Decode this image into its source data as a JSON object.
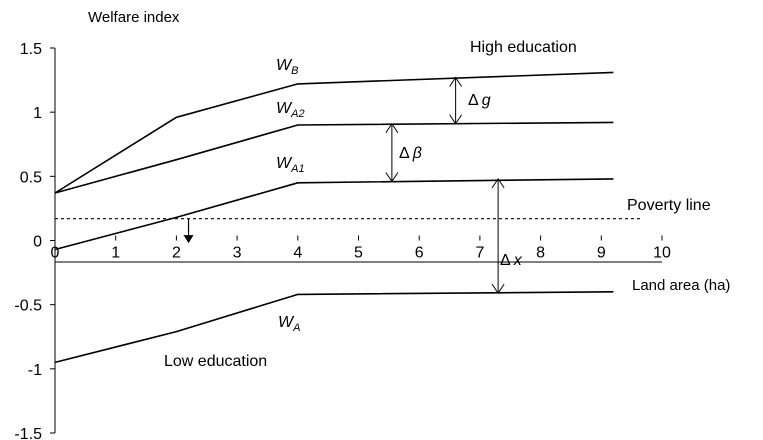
{
  "chart_data": {
    "type": "line",
    "ylabel": "Welfare index",
    "xlabel": "Land area (ha)",
    "xlim": [
      0,
      10
    ],
    "ylim": [
      -1.5,
      1.5
    ],
    "x_ticks": [
      "0",
      "1",
      "2",
      "3",
      "4",
      "5",
      "6",
      "7",
      "8",
      "9",
      "10"
    ],
    "y_ticks": [
      "1.5",
      "1",
      "0.5",
      "0",
      "-0.5",
      "-1",
      "-1.5"
    ],
    "grid": false,
    "legend": "none",
    "series": [
      {
        "name": "W_B",
        "label_main": "W",
        "label_sub": "B",
        "color": "#000000",
        "points": [
          [
            0,
            0.37
          ],
          [
            2,
            0.96
          ],
          [
            4,
            1.22
          ],
          [
            9.2,
            1.31
          ]
        ]
      },
      {
        "name": "W_A2",
        "label_main": "W",
        "label_sub": "A2",
        "color": "#000000",
        "points": [
          [
            0,
            0.37
          ],
          [
            2,
            0.63
          ],
          [
            4,
            0.9
          ],
          [
            9.2,
            0.92
          ]
        ]
      },
      {
        "name": "W_A1",
        "label_main": "W",
        "label_sub": "A1",
        "color": "#000000",
        "points": [
          [
            0,
            -0.07
          ],
          [
            2,
            0.18
          ],
          [
            4,
            0.45
          ],
          [
            9.2,
            0.48
          ]
        ]
      },
      {
        "name": "W_A",
        "label_main": "W",
        "label_sub": "A",
        "color": "#000000",
        "points": [
          [
            0,
            -0.95
          ],
          [
            2,
            -0.71
          ],
          [
            4,
            -0.42
          ],
          [
            9.2,
            -0.4
          ]
        ]
      }
    ],
    "poverty_line": {
      "label": "Poverty line",
      "y": 0.17
    },
    "annotations": {
      "high_education": "High education",
      "low_education": "Low education",
      "delta_g": {
        "symbol": "Δ",
        "var": "g",
        "x": 6.6,
        "y_top": 1.27,
        "y_bottom": 0.91
      },
      "delta_beta": {
        "symbol": "Δ",
        "var": "β",
        "x": 5.55,
        "y_top": 0.91,
        "y_bottom": 0.46
      },
      "delta_x": {
        "symbol": "Δ",
        "var": "x",
        "x": 7.3,
        "y_top": 0.48,
        "y_bottom": -0.41
      },
      "threshold_arrow": {
        "x": 2.2,
        "y_top": 0.17,
        "y_bottom": -0.02
      }
    }
  }
}
